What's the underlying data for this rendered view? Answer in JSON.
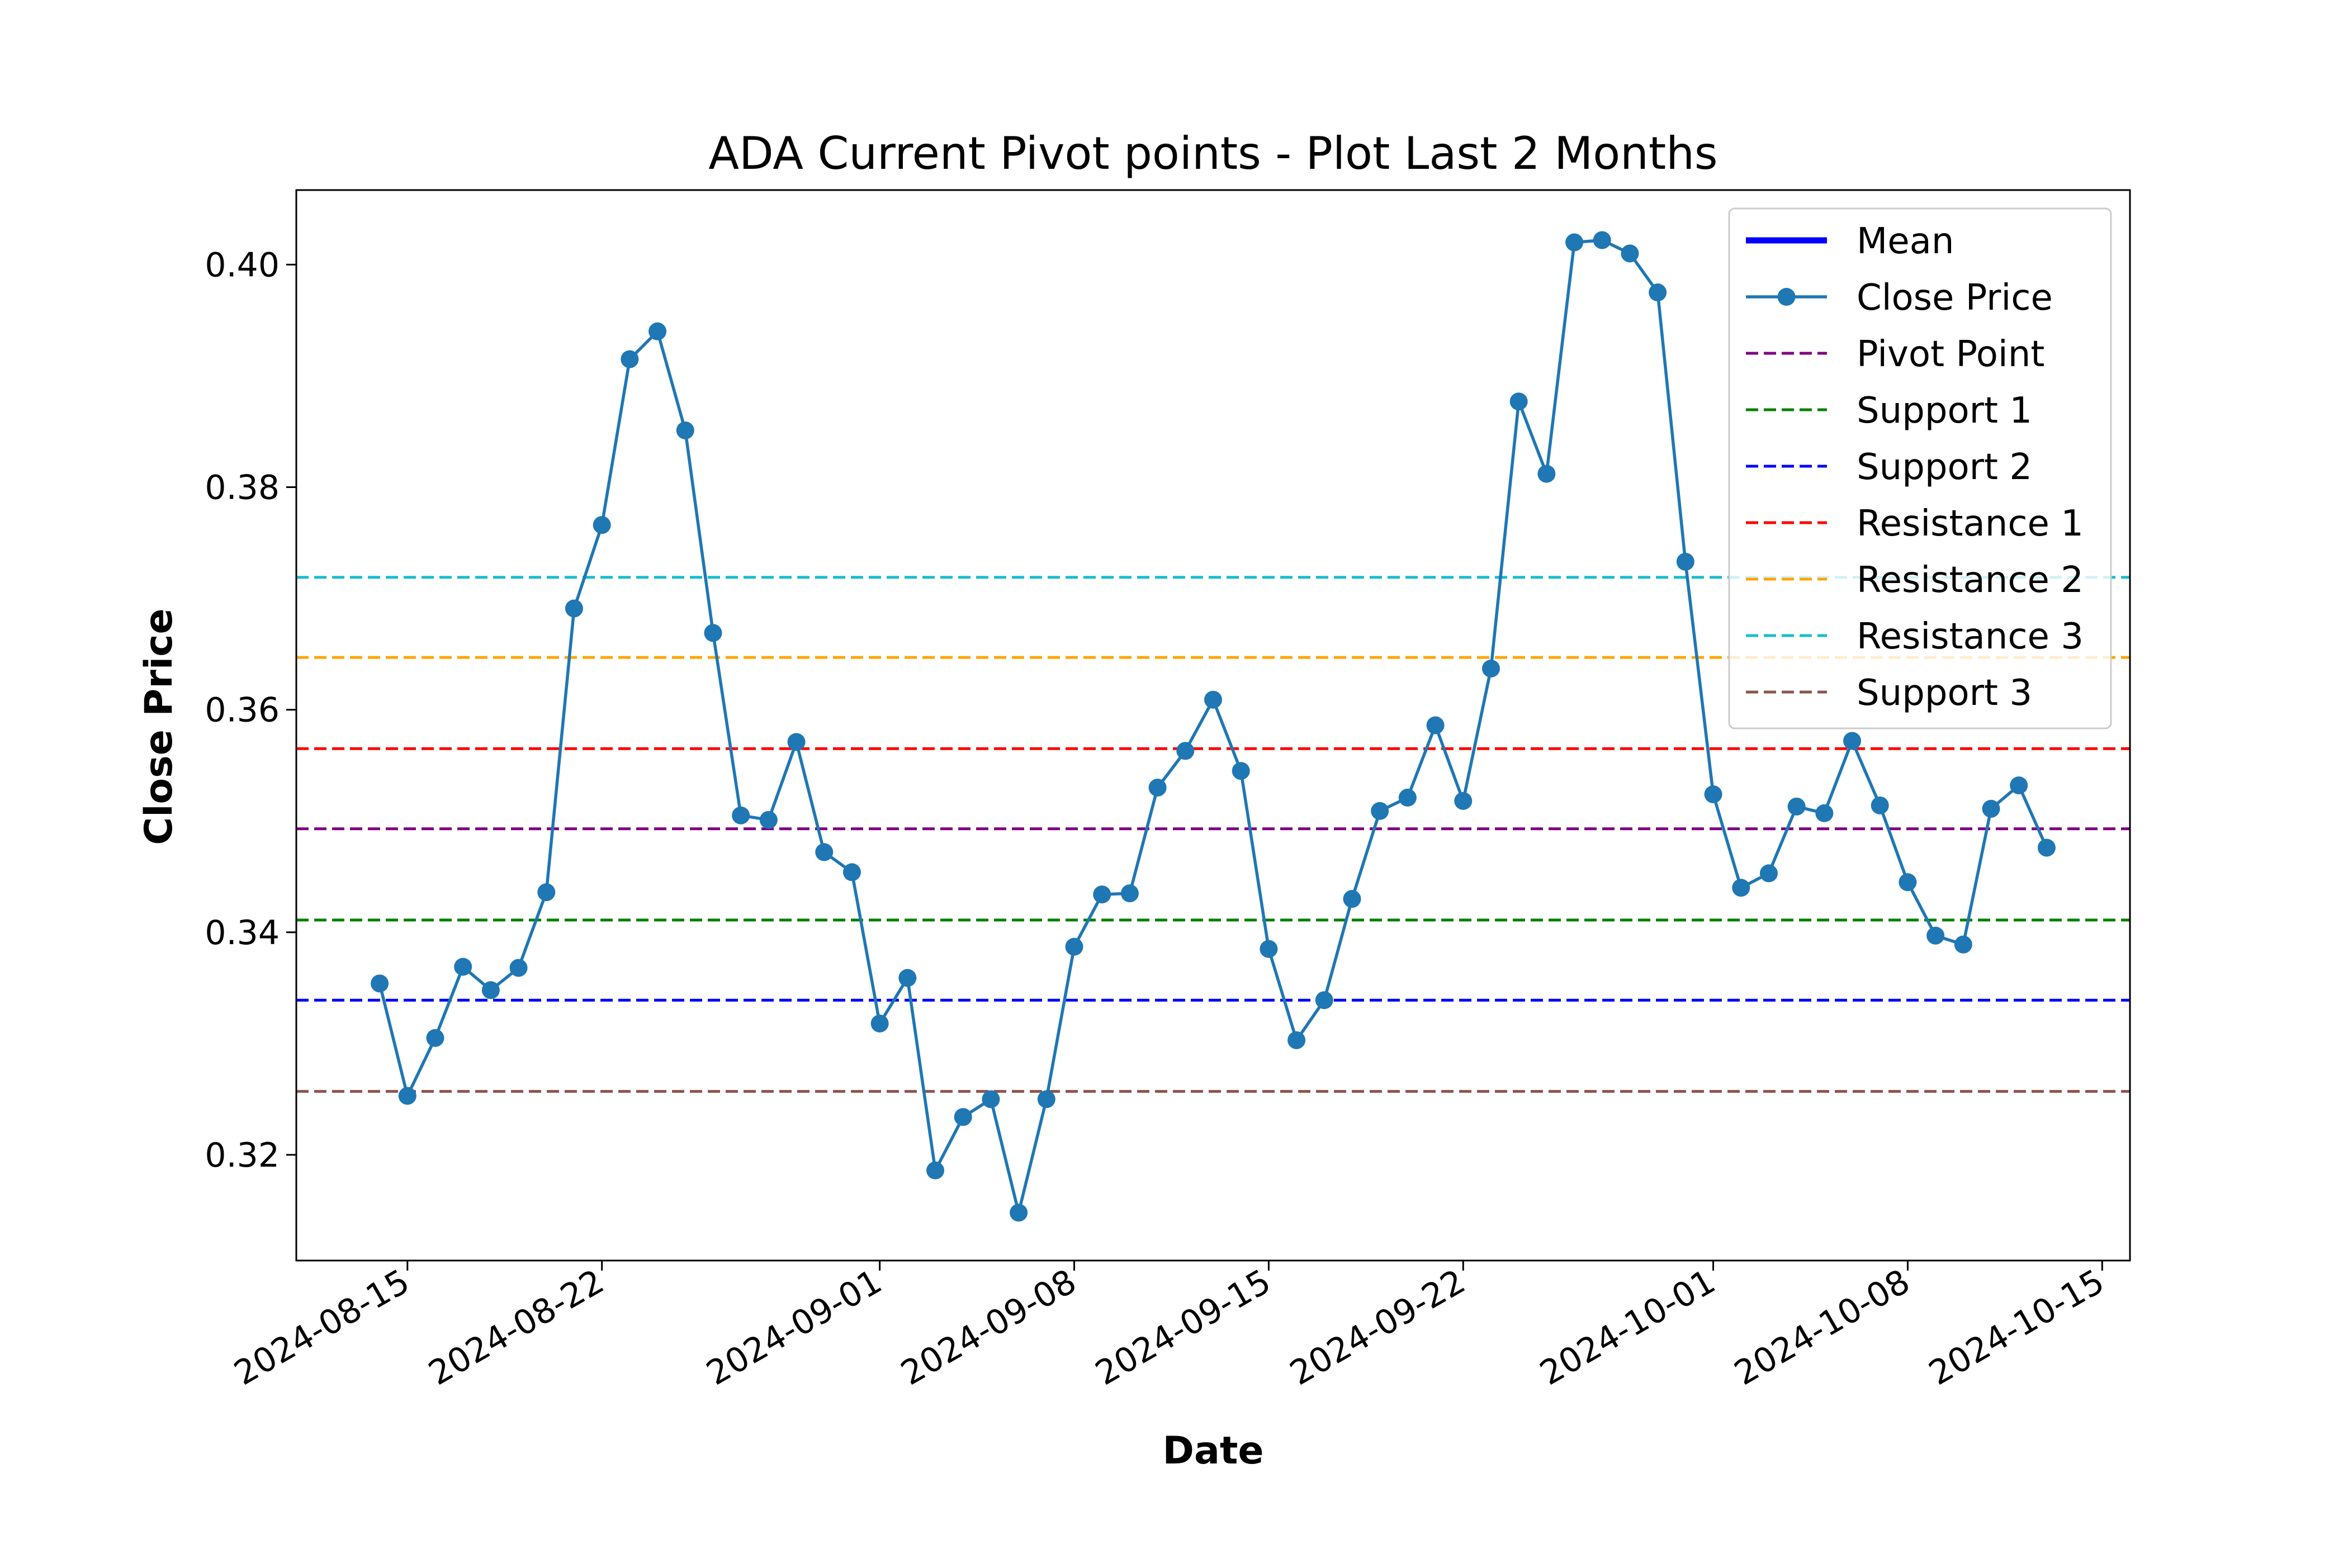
{
  "chart_data": {
    "type": "line",
    "title": "ADA Current Pivot points - Plot Last 2 Months",
    "xlabel": "Date",
    "ylabel": "Close Price",
    "xlim": [
      "2024-08-11",
      "2024-10-16"
    ],
    "ylim": [
      0.3105,
      0.4067
    ],
    "x_ticks": [
      "2024-08-15",
      "2024-08-22",
      "2024-09-01",
      "2024-09-08",
      "2024-09-15",
      "2024-09-22",
      "2024-10-01",
      "2024-10-08",
      "2024-10-15"
    ],
    "y_ticks": [
      0.32,
      0.34,
      0.36,
      0.38,
      0.4
    ],
    "y_tick_labels": [
      "0.32",
      "0.34",
      "0.36",
      "0.38",
      "0.40"
    ],
    "grid": false,
    "legend_position": "upper right",
    "series": [
      {
        "name": "Close Price",
        "color": "#1f77b4",
        "marker": "circle",
        "x": [
          "2024-08-14",
          "2024-08-15",
          "2024-08-16",
          "2024-08-17",
          "2024-08-18",
          "2024-08-19",
          "2024-08-20",
          "2024-08-21",
          "2024-08-22",
          "2024-08-23",
          "2024-08-24",
          "2024-08-25",
          "2024-08-26",
          "2024-08-27",
          "2024-08-28",
          "2024-08-29",
          "2024-08-30",
          "2024-08-31",
          "2024-09-01",
          "2024-09-02",
          "2024-09-03",
          "2024-09-04",
          "2024-09-05",
          "2024-09-06",
          "2024-09-07",
          "2024-09-08",
          "2024-09-09",
          "2024-09-10",
          "2024-09-11",
          "2024-09-12",
          "2024-09-13",
          "2024-09-14",
          "2024-09-15",
          "2024-09-16",
          "2024-09-17",
          "2024-09-18",
          "2024-09-19",
          "2024-09-20",
          "2024-09-21",
          "2024-09-22",
          "2024-09-23",
          "2024-09-24",
          "2024-09-25",
          "2024-09-26",
          "2024-09-27",
          "2024-09-28",
          "2024-09-29",
          "2024-09-30",
          "2024-10-01",
          "2024-10-02",
          "2024-10-03",
          "2024-10-04",
          "2024-10-05",
          "2024-10-06",
          "2024-10-07",
          "2024-10-08",
          "2024-10-09",
          "2024-10-10",
          "2024-10-11",
          "2024-10-12",
          "2024-10-13"
        ],
        "y": [
          0.3354,
          0.3253,
          0.3305,
          0.3369,
          0.3348,
          0.3368,
          0.3436,
          0.3691,
          0.3766,
          0.3915,
          0.394,
          0.3851,
          0.3669,
          0.3505,
          0.3501,
          0.3571,
          0.3472,
          0.3454,
          0.3318,
          0.3359,
          0.3186,
          0.3234,
          0.325,
          0.3148,
          0.325,
          0.3387,
          0.3434,
          0.3435,
          0.353,
          0.3563,
          0.3609,
          0.3545,
          0.3385,
          0.3303,
          0.3339,
          0.343,
          0.3509,
          0.3521,
          0.3586,
          0.3518,
          0.3637,
          0.3877,
          0.3812,
          0.402,
          0.4022,
          0.401,
          0.3975,
          0.3733,
          0.3524,
          0.344,
          0.3453,
          0.3513,
          0.3507,
          0.3572,
          0.3514,
          0.3445,
          0.3397,
          0.3389,
          0.3511,
          0.3532,
          0.3476
        ]
      }
    ],
    "reference_lines": [
      {
        "name": "Pivot Point",
        "value": 0.3493,
        "color": "#800080"
      },
      {
        "name": "Support 1",
        "value": 0.3411,
        "color": "#008000"
      },
      {
        "name": "Support 2",
        "value": 0.3339,
        "color": "#0000ff"
      },
      {
        "name": "Resistance 1",
        "value": 0.3565,
        "color": "#ff0000"
      },
      {
        "name": "Resistance 2",
        "value": 0.3647,
        "color": "#ffa500"
      },
      {
        "name": "Resistance 3",
        "value": 0.3719,
        "color": "#17becf"
      },
      {
        "name": "Support 3",
        "value": 0.3257,
        "color": "#8c564b"
      }
    ],
    "legend": [
      {
        "label": "Mean",
        "color": "#0000ff",
        "style": "solid-thick"
      },
      {
        "label": "Close Price",
        "color": "#1f77b4",
        "style": "line-marker"
      },
      {
        "label": "Pivot Point",
        "color": "#800080",
        "style": "dashed"
      },
      {
        "label": "Support 1",
        "color": "#008000",
        "style": "dashed"
      },
      {
        "label": "Support 2",
        "color": "#0000ff",
        "style": "dashed"
      },
      {
        "label": "Resistance 1",
        "color": "#ff0000",
        "style": "dashed"
      },
      {
        "label": "Resistance 2",
        "color": "#ffa500",
        "style": "dashed"
      },
      {
        "label": "Resistance 3",
        "color": "#17becf",
        "style": "dashed"
      },
      {
        "label": "Support 3",
        "color": "#8c564b",
        "style": "dashed"
      }
    ]
  }
}
